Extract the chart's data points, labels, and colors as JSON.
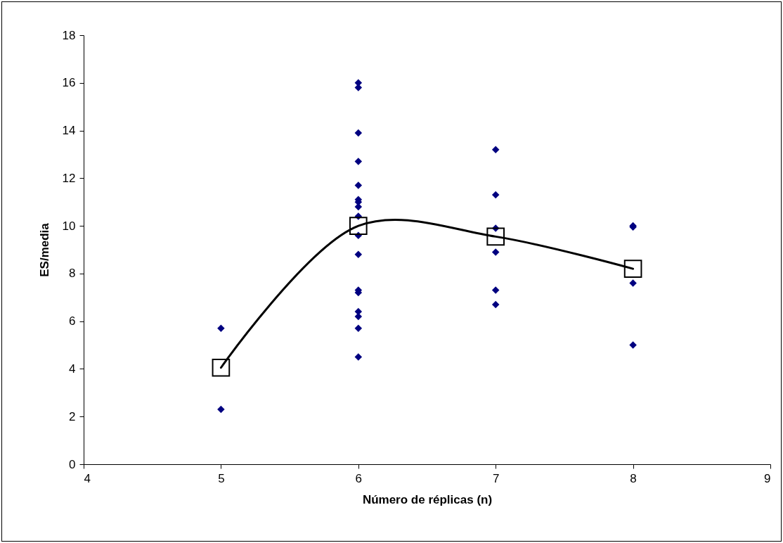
{
  "chart_data": {
    "type": "scatter",
    "xlabel": "Número de réplicas (n)",
    "ylabel": "ES/media",
    "xlim": [
      4,
      9
    ],
    "xticks": [
      4,
      5,
      6,
      7,
      8,
      9
    ],
    "ylim": [
      0,
      18
    ],
    "yticks": [
      0,
      2,
      4,
      6,
      8,
      10,
      12,
      14,
      16,
      18
    ],
    "grid": false,
    "series": [
      {
        "type": "scatter",
        "color": "#000080",
        "marker": "diamond",
        "x": [
          5,
          5,
          6,
          6,
          6,
          6,
          6,
          6,
          6,
          6,
          6,
          6,
          6,
          6,
          6,
          6,
          6,
          6,
          6,
          7,
          7,
          7,
          7,
          7,
          7,
          8,
          8,
          8,
          8
        ],
        "values": [
          5.7,
          2.3,
          16.0,
          15.8,
          13.9,
          12.7,
          11.7,
          11.1,
          11.0,
          10.8,
          10.4,
          9.6,
          8.8,
          7.3,
          7.2,
          6.4,
          6.2,
          5.7,
          4.5,
          13.2,
          11.3,
          9.9,
          8.9,
          7.3,
          6.7,
          10.0,
          9.95,
          7.6,
          5.0
        ]
      },
      {
        "type": "line",
        "color": "#000000",
        "marker": "square",
        "line_style": "solid",
        "x": [
          5,
          6,
          7,
          8
        ],
        "values": [
          4.05,
          10.0,
          9.55,
          8.2
        ]
      }
    ]
  }
}
